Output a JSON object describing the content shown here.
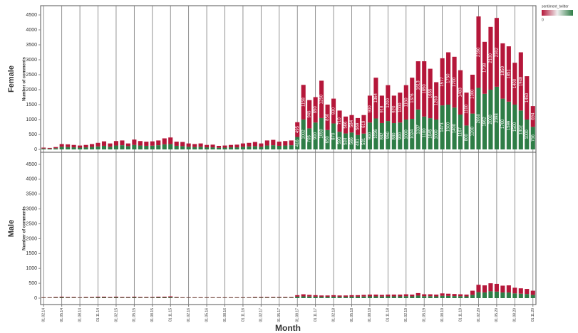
{
  "chart_data": [
    {
      "type": "bar",
      "stacked": true,
      "title": "Female",
      "ylabel": "Number of comments",
      "ylim": [
        0,
        4500
      ],
      "yticks": [
        0,
        500,
        1000,
        1500,
        2000,
        2500,
        3000,
        3500,
        4000,
        4500
      ],
      "series": [
        {
          "color": "#2e7d46",
          "values": [
            30,
            25,
            40,
            90,
            80,
            70,
            60,
            70,
            85,
            100,
            120,
            90,
            130,
            140,
            110,
            150,
            130,
            120,
            125,
            140,
            170,
            180,
            120,
            110,
            90,
            80,
            90,
            70,
            70,
            55,
            60,
            70,
            70,
            90,
            100,
            110,
            90,
            130,
            140,
            120,
            130,
            140,
            416,
            1002,
            705,
            900,
            1050,
            650,
            870,
            590,
            534,
            566,
            481,
            531,
            900,
            1036,
            882,
            950,
            880,
            900,
            1000,
            1024,
            1337,
            1100,
            1045,
            1000,
            1473,
            1500,
            1400,
            1167,
            800,
            1200,
            2060,
            1862,
            2000,
            2098,
            1700,
            1599,
            1500,
            1302,
            1000,
            756
          ],
          "value_labels": [
            null,
            null,
            null,
            null,
            null,
            null,
            null,
            null,
            null,
            null,
            null,
            null,
            null,
            null,
            null,
            null,
            null,
            null,
            null,
            null,
            null,
            null,
            null,
            null,
            null,
            null,
            null,
            null,
            null,
            null,
            null,
            null,
            null,
            null,
            null,
            null,
            null,
            null,
            null,
            null,
            null,
            null,
            "416",
            "1002",
            "705",
            "900",
            "1050",
            "650",
            "870",
            "590",
            "534",
            "566",
            "481",
            "531",
            "900",
            "1036",
            "882",
            "950",
            "880",
            "900",
            "1000",
            "1024",
            "1337",
            "1100",
            "1045",
            "1000",
            "1473",
            "1500",
            "1400",
            "1167",
            "800",
            "1200",
            "2060",
            "1862",
            "2000",
            "2098",
            "1700",
            "1599",
            "1500",
            "1302",
            "1000",
            "756"
          ]
        },
        {
          "color": "#b5173a",
          "values": [
            30,
            25,
            40,
            90,
            90,
            80,
            70,
            80,
            95,
            120,
            150,
            110,
            150,
            160,
            90,
            180,
            150,
            140,
            145,
            160,
            200,
            220,
            140,
            140,
            110,
            100,
            110,
            80,
            90,
            65,
            70,
            80,
            90,
            110,
            120,
            140,
            110,
            170,
            180,
            140,
            150,
            160,
            495,
            1158,
            945,
            850,
            1250,
            850,
            830,
            710,
            566,
            584,
            569,
            619,
            900,
            1364,
            918,
            1200,
            920,
            1000,
            1150,
            1376,
            1613,
            1850,
            1655,
            1250,
            1577,
            1750,
            1700,
            1483,
            1100,
            1300,
            2390,
            1738,
            2100,
            2302,
            1850,
            1851,
            1400,
            1948,
            1450,
            694
          ],
          "value_labels": [
            null,
            null,
            null,
            null,
            null,
            null,
            null,
            null,
            null,
            null,
            null,
            null,
            null,
            null,
            null,
            null,
            null,
            null,
            null,
            null,
            null,
            null,
            null,
            null,
            null,
            null,
            null,
            null,
            null,
            null,
            null,
            null,
            null,
            null,
            null,
            null,
            null,
            null,
            null,
            null,
            null,
            null,
            "495",
            "1158",
            "945",
            "850",
            "1250",
            "850",
            "830",
            "710",
            "566",
            "584",
            "569",
            "619",
            "900",
            "1364",
            "918",
            "1200",
            "920",
            "1000",
            "1150",
            "1376",
            "1613",
            "1850",
            "1655",
            "1250",
            "1577",
            "1750",
            "1700",
            "1483",
            "1100",
            "1300",
            "2390",
            "1738",
            "2100",
            "2302",
            "1850",
            "1851",
            "1400",
            "1948",
            "1450",
            "694"
          ]
        }
      ]
    },
    {
      "type": "bar",
      "stacked": true,
      "title": "Male",
      "ylabel": "Number of comments",
      "xlabel": "Month",
      "legend_title": "sentiment_twitter",
      "legend_label": "0",
      "categories": [
        "01.02.14",
        null,
        null,
        "01.05.14",
        null,
        null,
        "01.08.14",
        null,
        null,
        "01.11.14",
        null,
        null,
        "01.02.15",
        null,
        null,
        "01.05.15",
        null,
        null,
        "01.08.15",
        null,
        null,
        "01.11.15",
        null,
        null,
        "01.02.16",
        null,
        null,
        "01.05.16",
        null,
        null,
        "01.08.16",
        null,
        null,
        "01.11.16",
        null,
        null,
        "01.02.17",
        null,
        null,
        "01.05.17",
        null,
        null,
        "01.08.17",
        null,
        null,
        "01.11.17",
        null,
        null,
        "01.02.18",
        null,
        null,
        "01.05.18",
        null,
        null,
        "01.08.18",
        null,
        null,
        "01.11.18",
        null,
        null,
        "01.02.19",
        null,
        null,
        "01.05.19",
        null,
        null,
        "01.08.19",
        null,
        null,
        "01.11.19",
        null,
        null,
        "01.02.20",
        null,
        null,
        "01.05.20",
        null,
        null,
        "01.08.20",
        null,
        null,
        "01.11.20"
      ],
      "ylim": [
        0,
        4500
      ],
      "yticks": [
        0,
        500,
        1000,
        1500,
        2000,
        2500,
        3000,
        3500,
        4000,
        4500
      ],
      "series": [
        {
          "color": "#2e7d46",
          "values": [
            15,
            15,
            20,
            25,
            20,
            20,
            15,
            20,
            20,
            25,
            25,
            20,
            25,
            20,
            20,
            25,
            20,
            20,
            20,
            25,
            25,
            30,
            20,
            15,
            15,
            15,
            15,
            15,
            15,
            15,
            15,
            15,
            15,
            15,
            15,
            20,
            20,
            20,
            20,
            20,
            20,
            20,
            50,
            60,
            55,
            50,
            45,
            45,
            50,
            45,
            45,
            50,
            50,
            55,
            60,
            60,
            55,
            60,
            60,
            60,
            65,
            60,
            85,
            65,
            65,
            60,
            80,
            75,
            70,
            65,
            60,
            110,
            200,
            190,
            230,
            220,
            190,
            190,
            160,
            150,
            140,
            110
          ]
        },
        {
          "color": "#b5173a",
          "values": [
            15,
            15,
            20,
            25,
            20,
            20,
            15,
            20,
            20,
            25,
            25,
            20,
            25,
            20,
            20,
            25,
            20,
            20,
            20,
            25,
            25,
            30,
            20,
            15,
            15,
            15,
            15,
            15,
            15,
            15,
            15,
            15,
            15,
            15,
            15,
            20,
            20,
            20,
            20,
            20,
            20,
            20,
            50,
            70,
            55,
            50,
            45,
            45,
            50,
            45,
            45,
            50,
            50,
            55,
            60,
            60,
            55,
            60,
            60,
            60,
            65,
            60,
            85,
            65,
            65,
            60,
            80,
            75,
            70,
            65,
            60,
            140,
            250,
            240,
            270,
            260,
            230,
            240,
            190,
            180,
            170,
            140
          ]
        }
      ]
    }
  ]
}
